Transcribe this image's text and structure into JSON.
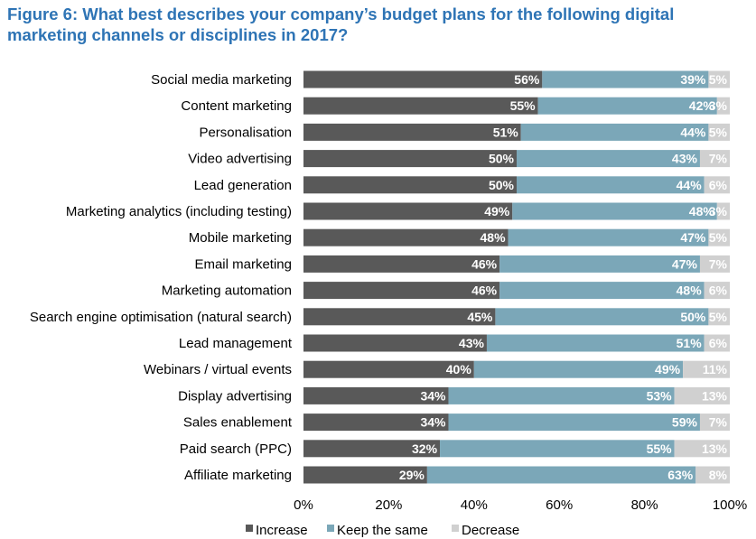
{
  "chart_data": {
    "type": "bar",
    "orientation": "horizontal",
    "stacked": true,
    "title": "Figure 6: What best describes your company’s budget plans for the following digital marketing channels or disciplines in 2017?",
    "categories": [
      "Social media marketing",
      "Content marketing",
      "Personalisation",
      "Video advertising",
      "Lead generation",
      "Marketing analytics (including testing)",
      "Mobile marketing",
      "Email marketing",
      "Marketing automation",
      "Search engine optimisation (natural search)",
      "Lead management",
      "Webinars / virtual events",
      "Display advertising",
      "Sales enablement",
      "Paid search (PPC)",
      "Affiliate marketing"
    ],
    "series": [
      {
        "name": "Increase",
        "color": "#595959",
        "values": [
          56,
          55,
          51,
          50,
          50,
          49,
          48,
          46,
          46,
          45,
          43,
          40,
          34,
          34,
          32,
          29
        ]
      },
      {
        "name": "Keep the same",
        "color": "#7ba7b8",
        "values": [
          39,
          42,
          44,
          43,
          44,
          48,
          47,
          47,
          48,
          50,
          51,
          49,
          53,
          59,
          55,
          63
        ]
      },
      {
        "name": "Decrease",
        "color": "#d0d0d0",
        "values": [
          5,
          3,
          5,
          7,
          6,
          3,
          5,
          7,
          6,
          5,
          6,
          11,
          13,
          7,
          13,
          8
        ]
      }
    ],
    "data_labels": [
      [
        "56%",
        "39%",
        "5%"
      ],
      [
        "55%",
        "42%",
        "3%"
      ],
      [
        "51%",
        "44%",
        "5%"
      ],
      [
        "50%",
        "43%",
        "7%"
      ],
      [
        "50%",
        "44%",
        "6%"
      ],
      [
        "49%",
        "48%",
        "3%"
      ],
      [
        "48%",
        "47%",
        "5%"
      ],
      [
        "46%",
        "47%",
        "7%"
      ],
      [
        "46%",
        "48%",
        "6%"
      ],
      [
        "45%",
        "50%",
        "5%"
      ],
      [
        "43%",
        "51%",
        "6%"
      ],
      [
        "40%",
        "49%",
        "11%"
      ],
      [
        "34%",
        "53%",
        "13%"
      ],
      [
        "34%",
        "59%",
        "7%"
      ],
      [
        "32%",
        "55%",
        "13%"
      ],
      [
        "29%",
        "63%",
        "8%"
      ]
    ],
    "x_ticks": [
      "0%",
      "20%",
      "40%",
      "60%",
      "80%",
      "100%"
    ],
    "xlim": [
      0,
      100
    ],
    "grid": false,
    "legend_position": "bottom"
  }
}
